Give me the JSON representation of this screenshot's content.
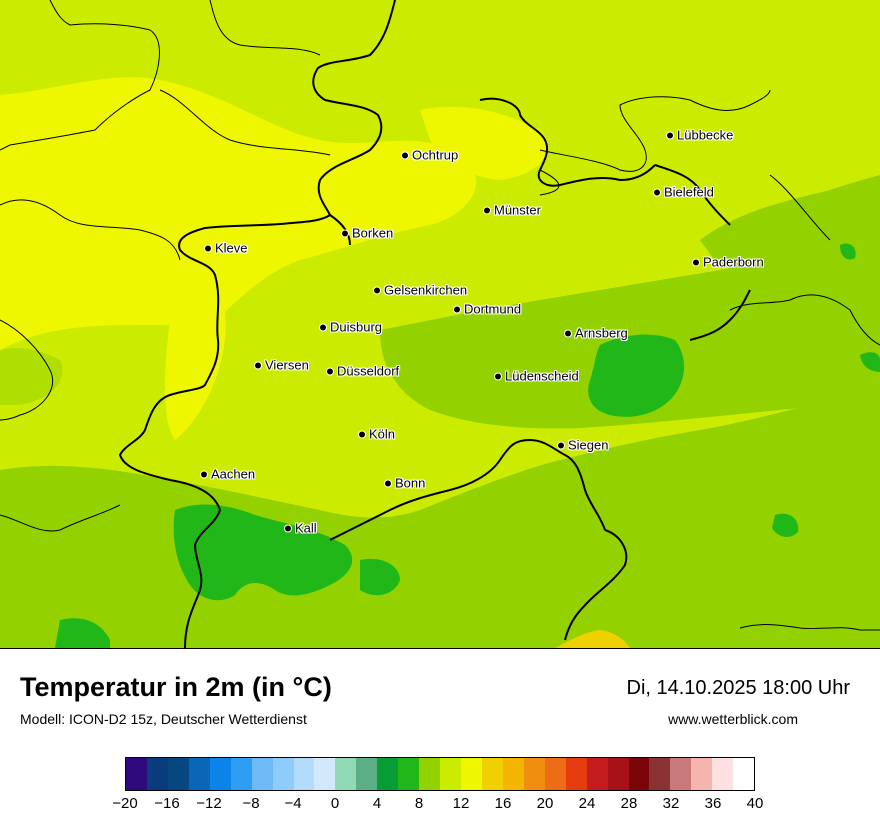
{
  "map": {
    "cities": [
      {
        "name": "Lübbecke"
      },
      {
        "name": "Ochtrup"
      },
      {
        "name": "Bielefeld"
      },
      {
        "name": "Münster"
      },
      {
        "name": "Borken"
      },
      {
        "name": "Kleve"
      },
      {
        "name": "Paderborn"
      },
      {
        "name": "Gelsenkirchen"
      },
      {
        "name": "Dortmund"
      },
      {
        "name": "Duisburg"
      },
      {
        "name": "Arnsberg"
      },
      {
        "name": "Viersen"
      },
      {
        "name": "Düsseldorf"
      },
      {
        "name": "Lüdenscheid"
      },
      {
        "name": "Köln"
      },
      {
        "name": "Siegen"
      },
      {
        "name": "Aachen"
      },
      {
        "name": "Bonn"
      },
      {
        "name": "Kall"
      }
    ]
  },
  "header": {
    "title": "Temperatur in 2m (in °C)",
    "model": "Modell: ICON-D2 15z, Deutscher Wetterdienst",
    "datetime": "Di, 14.10.2025 18:00 Uhr",
    "website": "www.wetterblick.com"
  },
  "legend": {
    "ticks": [
      "−20",
      "−16",
      "−12",
      "−8",
      "−4",
      "0",
      "4",
      "8",
      "12",
      "16",
      "20",
      "24",
      "28",
      "32",
      "36",
      "40"
    ],
    "colors": [
      "#2e0a7c",
      "#093c7e",
      "#07477f",
      "#0a66b7",
      "#0b83e8",
      "#2e9df4",
      "#6ebaf6",
      "#8ecdfb",
      "#b5dbfa",
      "#d3e8fb",
      "#91dab8",
      "#5cae84",
      "#089c36",
      "#22b718",
      "#93d200",
      "#cbec00",
      "#eef700",
      "#f0d000",
      "#f3b500",
      "#f08e10",
      "#ed6c15",
      "#e53b0f",
      "#c41b1f",
      "#a71218",
      "#7a0407",
      "#8c3235",
      "#c87a7a",
      "#f5b4ae",
      "#fde0e0",
      "#ffffff"
    ]
  },
  "colors": {
    "field_main": "#cbec00",
    "field_warm": "#eef700",
    "field_mid": "#93d200",
    "field_cool": "#22b718",
    "hot_spot": "#f0d000",
    "border": "#000000"
  }
}
